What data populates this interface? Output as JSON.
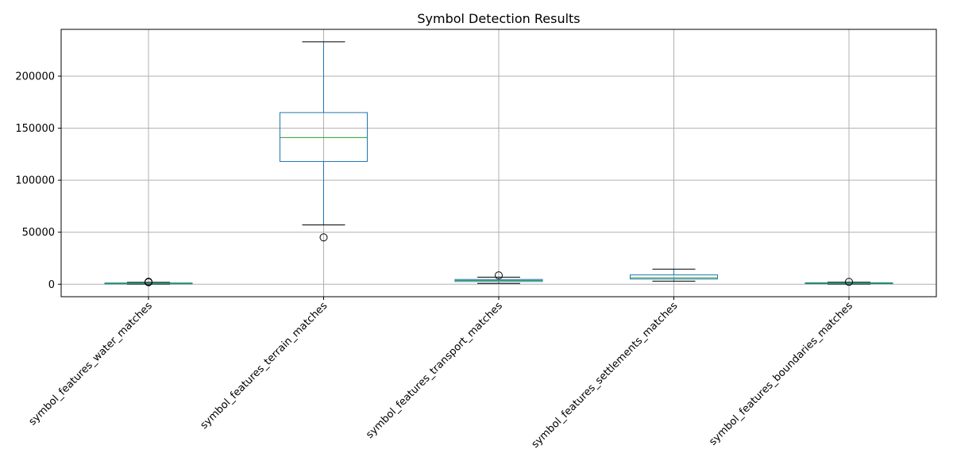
{
  "chart_data": {
    "type": "box",
    "title": "Symbol Detection Results",
    "xlabel": "",
    "ylabel": "",
    "ylim": [
      -12000,
      245000
    ],
    "yticks": [
      0,
      50000,
      100000,
      150000,
      200000
    ],
    "ytick_labels": [
      "0",
      "50000",
      "100000",
      "150000",
      "200000"
    ],
    "grid": true,
    "categories": [
      "symbol_features_water_matches",
      "symbol_features_terrain_matches",
      "symbol_features_transport_matches",
      "symbol_features_settlements_matches",
      "symbol_features_boundaries_matches"
    ],
    "boxes": [
      {
        "whislo": 0,
        "q1": 300,
        "med": 800,
        "q3": 1200,
        "whishi": 1800,
        "fliers": [
          2400,
          1900
        ]
      },
      {
        "whislo": 57000,
        "q1": 118000,
        "med": 141000,
        "q3": 165000,
        "whishi": 233000,
        "fliers": [
          45000
        ]
      },
      {
        "whislo": 800,
        "q1": 2600,
        "med": 3600,
        "q3": 4600,
        "whishi": 6800,
        "fliers": [
          8500
        ]
      },
      {
        "whislo": 3000,
        "q1": 5000,
        "med": 6200,
        "q3": 9000,
        "whishi": 14500,
        "fliers": []
      },
      {
        "whislo": 100,
        "q1": 500,
        "med": 1000,
        "q3": 1400,
        "whishi": 1900,
        "fliers": [
          2300
        ]
      }
    ],
    "colors": {
      "box": "#1f77b4",
      "median": "#2ca02c",
      "whisker": "#1f77b4",
      "cap": "#000000",
      "flier": "#000000",
      "grid": "#b0b0b0",
      "axes": "#000000"
    }
  }
}
